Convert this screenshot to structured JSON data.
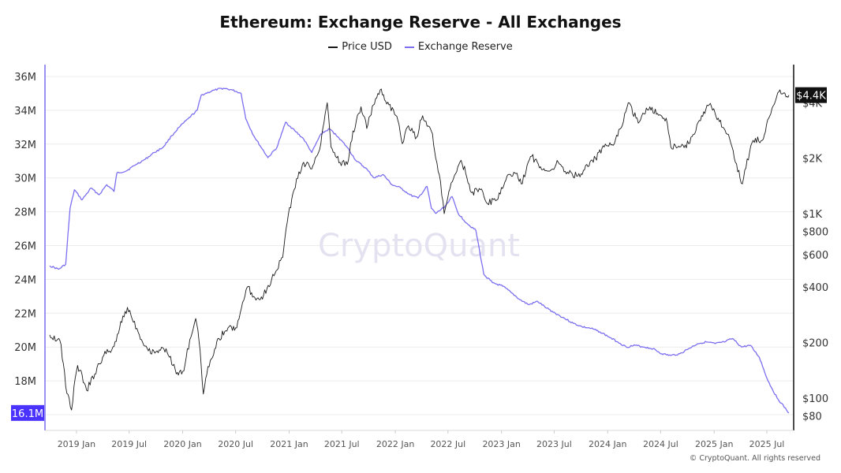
{
  "page": {
    "title": "Ethereum: Exchange Reserve - All Exchanges",
    "watermark": "CryptoQuant",
    "copyright": "© CryptoQuant. All rights reserved"
  },
  "colors": {
    "price": "#1a1a1a",
    "reserve": "#7b6ff0",
    "reserve_badge": "#4a32ff",
    "price_badge": "#111111",
    "grid": "#ececec",
    "watermark": "#e4e2f0"
  },
  "chart_data": {
    "type": "line",
    "title": "Ethereum: Exchange Reserve - All Exchanges",
    "legend": [
      "Price USD",
      "Exchange Reserve"
    ],
    "legend_position": "top-center",
    "grid": true,
    "x_ticks": [
      "2019 Jan",
      "2019 Jul",
      "2020 Jan",
      "2020 Jul",
      "2021 Jan",
      "2021 Jul",
      "2022 Jan",
      "2022 Jul",
      "2023 Jan",
      "2023 Jul",
      "2024 Jan",
      "2024 Jul",
      "2025 Jan",
      "2025 Jul"
    ],
    "x_range": [
      "2018-10-01",
      "2025-09-15"
    ],
    "y_left": {
      "label": "",
      "range": [
        16000000,
        36000000
      ],
      "ticks": [
        "36M",
        "34M",
        "32M",
        "30M",
        "28M",
        "26M",
        "24M",
        "22M",
        "20M",
        "18M"
      ],
      "tick_values": [
        36000000,
        34000000,
        32000000,
        30000000,
        28000000,
        26000000,
        24000000,
        22000000,
        20000000,
        18000000
      ],
      "last_value_label": "16.1M"
    },
    "y_right": {
      "label": "",
      "scale": "log",
      "range": [
        70,
        5500
      ],
      "ticks": [
        "$4K",
        "$2K",
        "$1K",
        "$800",
        "$600",
        "$400",
        "$200",
        "$100",
        "$80"
      ],
      "tick_values": [
        4000,
        2000,
        1000,
        800,
        600,
        400,
        200,
        100,
        80
      ],
      "last_value_label": "$4.4K"
    },
    "series": [
      {
        "name": "Exchange Reserve",
        "axis": "left",
        "points": [
          [
            "2018-10-01",
            24.8
          ],
          [
            "2018-11-01",
            24.6
          ],
          [
            "2018-11-25",
            24.9
          ],
          [
            "2018-12-10",
            28.2
          ],
          [
            "2018-12-25",
            29.3
          ],
          [
            "2019-01-20",
            28.7
          ],
          [
            "2019-02-20",
            29.4
          ],
          [
            "2019-03-20",
            29.0
          ],
          [
            "2019-04-15",
            29.6
          ],
          [
            "2019-05-10",
            29.2
          ],
          [
            "2019-05-20",
            30.3
          ],
          [
            "2019-06-20",
            30.4
          ],
          [
            "2019-07-25",
            30.8
          ],
          [
            "2019-08-25",
            31.1
          ],
          [
            "2019-09-25",
            31.5
          ],
          [
            "2019-10-25",
            31.8
          ],
          [
            "2019-11-25",
            32.5
          ],
          [
            "2019-12-20",
            33.0
          ],
          [
            "2020-01-20",
            33.5
          ],
          [
            "2020-02-20",
            34.0
          ],
          [
            "2020-03-05",
            34.9
          ],
          [
            "2020-04-20",
            35.2
          ],
          [
            "2020-05-20",
            35.3
          ],
          [
            "2020-06-20",
            35.2
          ],
          [
            "2020-07-20",
            35.0
          ],
          [
            "2020-08-05",
            33.5
          ],
          [
            "2020-09-01",
            32.5
          ],
          [
            "2020-10-01",
            31.7
          ],
          [
            "2020-10-20",
            31.2
          ],
          [
            "2020-11-20",
            31.8
          ],
          [
            "2020-12-10",
            32.8
          ],
          [
            "2020-12-20",
            33.3
          ],
          [
            "2021-01-20",
            32.8
          ],
          [
            "2021-02-20",
            32.3
          ],
          [
            "2021-03-20",
            31.5
          ],
          [
            "2021-04-20",
            32.6
          ],
          [
            "2021-05-20",
            32.9
          ],
          [
            "2021-06-20",
            32.4
          ],
          [
            "2021-07-20",
            31.8
          ],
          [
            "2021-08-20",
            31.0
          ],
          [
            "2021-09-20",
            30.6
          ],
          [
            "2021-10-20",
            30.0
          ],
          [
            "2021-11-20",
            30.2
          ],
          [
            "2021-12-20",
            29.6
          ],
          [
            "2022-01-20",
            29.4
          ],
          [
            "2022-02-20",
            29.0
          ],
          [
            "2022-03-20",
            28.8
          ],
          [
            "2022-04-20",
            29.5
          ],
          [
            "2022-05-05",
            28.2
          ],
          [
            "2022-05-20",
            27.9
          ],
          [
            "2022-06-20",
            28.3
          ],
          [
            "2022-07-15",
            28.9
          ],
          [
            "2022-08-05",
            27.9
          ],
          [
            "2022-09-05",
            27.3
          ],
          [
            "2022-10-05",
            26.9
          ],
          [
            "2022-11-01",
            24.3
          ],
          [
            "2022-12-01",
            23.8
          ],
          [
            "2023-01-05",
            23.6
          ],
          [
            "2023-02-05",
            23.2
          ],
          [
            "2023-03-05",
            22.8
          ],
          [
            "2023-04-05",
            22.5
          ],
          [
            "2023-05-05",
            22.7
          ],
          [
            "2023-06-05",
            22.3
          ],
          [
            "2023-07-05",
            22.0
          ],
          [
            "2023-08-05",
            21.7
          ],
          [
            "2023-09-05",
            21.4
          ],
          [
            "2023-10-05",
            21.2
          ],
          [
            "2023-11-05",
            21.1
          ],
          [
            "2023-12-05",
            20.9
          ],
          [
            "2024-01-05",
            20.6
          ],
          [
            "2024-02-05",
            20.3
          ],
          [
            "2024-03-05",
            20.0
          ],
          [
            "2024-04-05",
            20.1
          ],
          [
            "2024-05-05",
            20.0
          ],
          [
            "2024-06-05",
            19.9
          ],
          [
            "2024-07-05",
            19.6
          ],
          [
            "2024-08-05",
            19.5
          ],
          [
            "2024-09-05",
            19.6
          ],
          [
            "2024-10-05",
            19.9
          ],
          [
            "2024-11-05",
            20.2
          ],
          [
            "2024-12-05",
            20.3
          ],
          [
            "2025-01-05",
            20.2
          ],
          [
            "2025-02-05",
            20.3
          ],
          [
            "2025-03-05",
            20.5
          ],
          [
            "2025-04-05",
            20.0
          ],
          [
            "2025-05-05",
            20.1
          ],
          [
            "2025-06-05",
            19.4
          ],
          [
            "2025-07-05",
            18.0
          ],
          [
            "2025-08-05",
            17.0
          ],
          [
            "2025-09-15",
            16.1
          ]
        ]
      },
      {
        "name": "Price USD",
        "axis": "right",
        "points": [
          [
            "2018-10-01",
            220
          ],
          [
            "2018-11-05",
            205
          ],
          [
            "2018-11-25",
            115
          ],
          [
            "2018-12-15",
            86
          ],
          [
            "2019-01-05",
            150
          ],
          [
            "2019-02-05",
            110
          ],
          [
            "2019-03-05",
            135
          ],
          [
            "2019-04-05",
            170
          ],
          [
            "2019-05-10",
            190
          ],
          [
            "2019-06-25",
            310
          ],
          [
            "2019-08-05",
            220
          ],
          [
            "2019-09-05",
            180
          ],
          [
            "2019-10-05",
            180
          ],
          [
            "2019-11-05",
            185
          ],
          [
            "2019-12-10",
            135
          ],
          [
            "2020-01-05",
            140
          ],
          [
            "2020-02-15",
            270
          ],
          [
            "2020-03-12",
            105
          ],
          [
            "2020-04-05",
            160
          ],
          [
            "2020-05-05",
            210
          ],
          [
            "2020-06-05",
            240
          ],
          [
            "2020-07-05",
            240
          ],
          [
            "2020-08-10",
            400
          ],
          [
            "2020-09-05",
            350
          ],
          [
            "2020-10-05",
            360
          ],
          [
            "2020-11-10",
            460
          ],
          [
            "2020-12-10",
            580
          ],
          [
            "2021-01-10",
            1200
          ],
          [
            "2021-02-20",
            1900
          ],
          [
            "2021-03-20",
            1750
          ],
          [
            "2021-04-20",
            2400
          ],
          [
            "2021-05-12",
            4000
          ],
          [
            "2021-05-25",
            2300
          ],
          [
            "2021-06-25",
            1900
          ],
          [
            "2021-07-20",
            1850
          ],
          [
            "2021-08-20",
            3200
          ],
          [
            "2021-09-05",
            3800
          ],
          [
            "2021-09-25",
            2900
          ],
          [
            "2021-10-25",
            4200
          ],
          [
            "2021-11-10",
            4700
          ],
          [
            "2021-12-10",
            3900
          ],
          [
            "2022-01-10",
            3200
          ],
          [
            "2022-01-25",
            2400
          ],
          [
            "2022-02-15",
            3000
          ],
          [
            "2022-03-15",
            2600
          ],
          [
            "2022-04-05",
            3400
          ],
          [
            "2022-05-05",
            2800
          ],
          [
            "2022-05-20",
            2000
          ],
          [
            "2022-06-18",
            1000
          ],
          [
            "2022-07-20",
            1550
          ],
          [
            "2022-08-15",
            1950
          ],
          [
            "2022-09-20",
            1300
          ],
          [
            "2022-10-20",
            1350
          ],
          [
            "2022-11-10",
            1150
          ],
          [
            "2022-12-20",
            1200
          ],
          [
            "2023-01-20",
            1600
          ],
          [
            "2023-02-20",
            1650
          ],
          [
            "2023-03-10",
            1450
          ],
          [
            "2023-04-15",
            2050
          ],
          [
            "2023-05-15",
            1800
          ],
          [
            "2023-06-15",
            1700
          ],
          [
            "2023-07-15",
            1900
          ],
          [
            "2023-08-20",
            1650
          ],
          [
            "2023-09-20",
            1600
          ],
          [
            "2023-10-25",
            1800
          ],
          [
            "2023-11-20",
            2000
          ],
          [
            "2023-12-20",
            2300
          ],
          [
            "2024-01-20",
            2350
          ],
          [
            "2024-02-20",
            3000
          ],
          [
            "2024-03-12",
            4000
          ],
          [
            "2024-04-15",
            3100
          ],
          [
            "2024-05-25",
            3800
          ],
          [
            "2024-06-20",
            3500
          ],
          [
            "2024-07-20",
            3300
          ],
          [
            "2024-08-05",
            2300
          ],
          [
            "2024-09-05",
            2300
          ],
          [
            "2024-10-05",
            2400
          ],
          [
            "2024-11-15",
            3200
          ],
          [
            "2024-12-15",
            3900
          ],
          [
            "2025-01-15",
            3300
          ],
          [
            "2025-02-15",
            2700
          ],
          [
            "2025-03-15",
            1900
          ],
          [
            "2025-04-08",
            1450
          ],
          [
            "2025-05-15",
            2500
          ],
          [
            "2025-06-15",
            2500
          ],
          [
            "2025-07-15",
            3500
          ],
          [
            "2025-08-15",
            4700
          ],
          [
            "2025-09-05",
            4300
          ],
          [
            "2025-09-15",
            4400
          ]
        ]
      }
    ]
  }
}
